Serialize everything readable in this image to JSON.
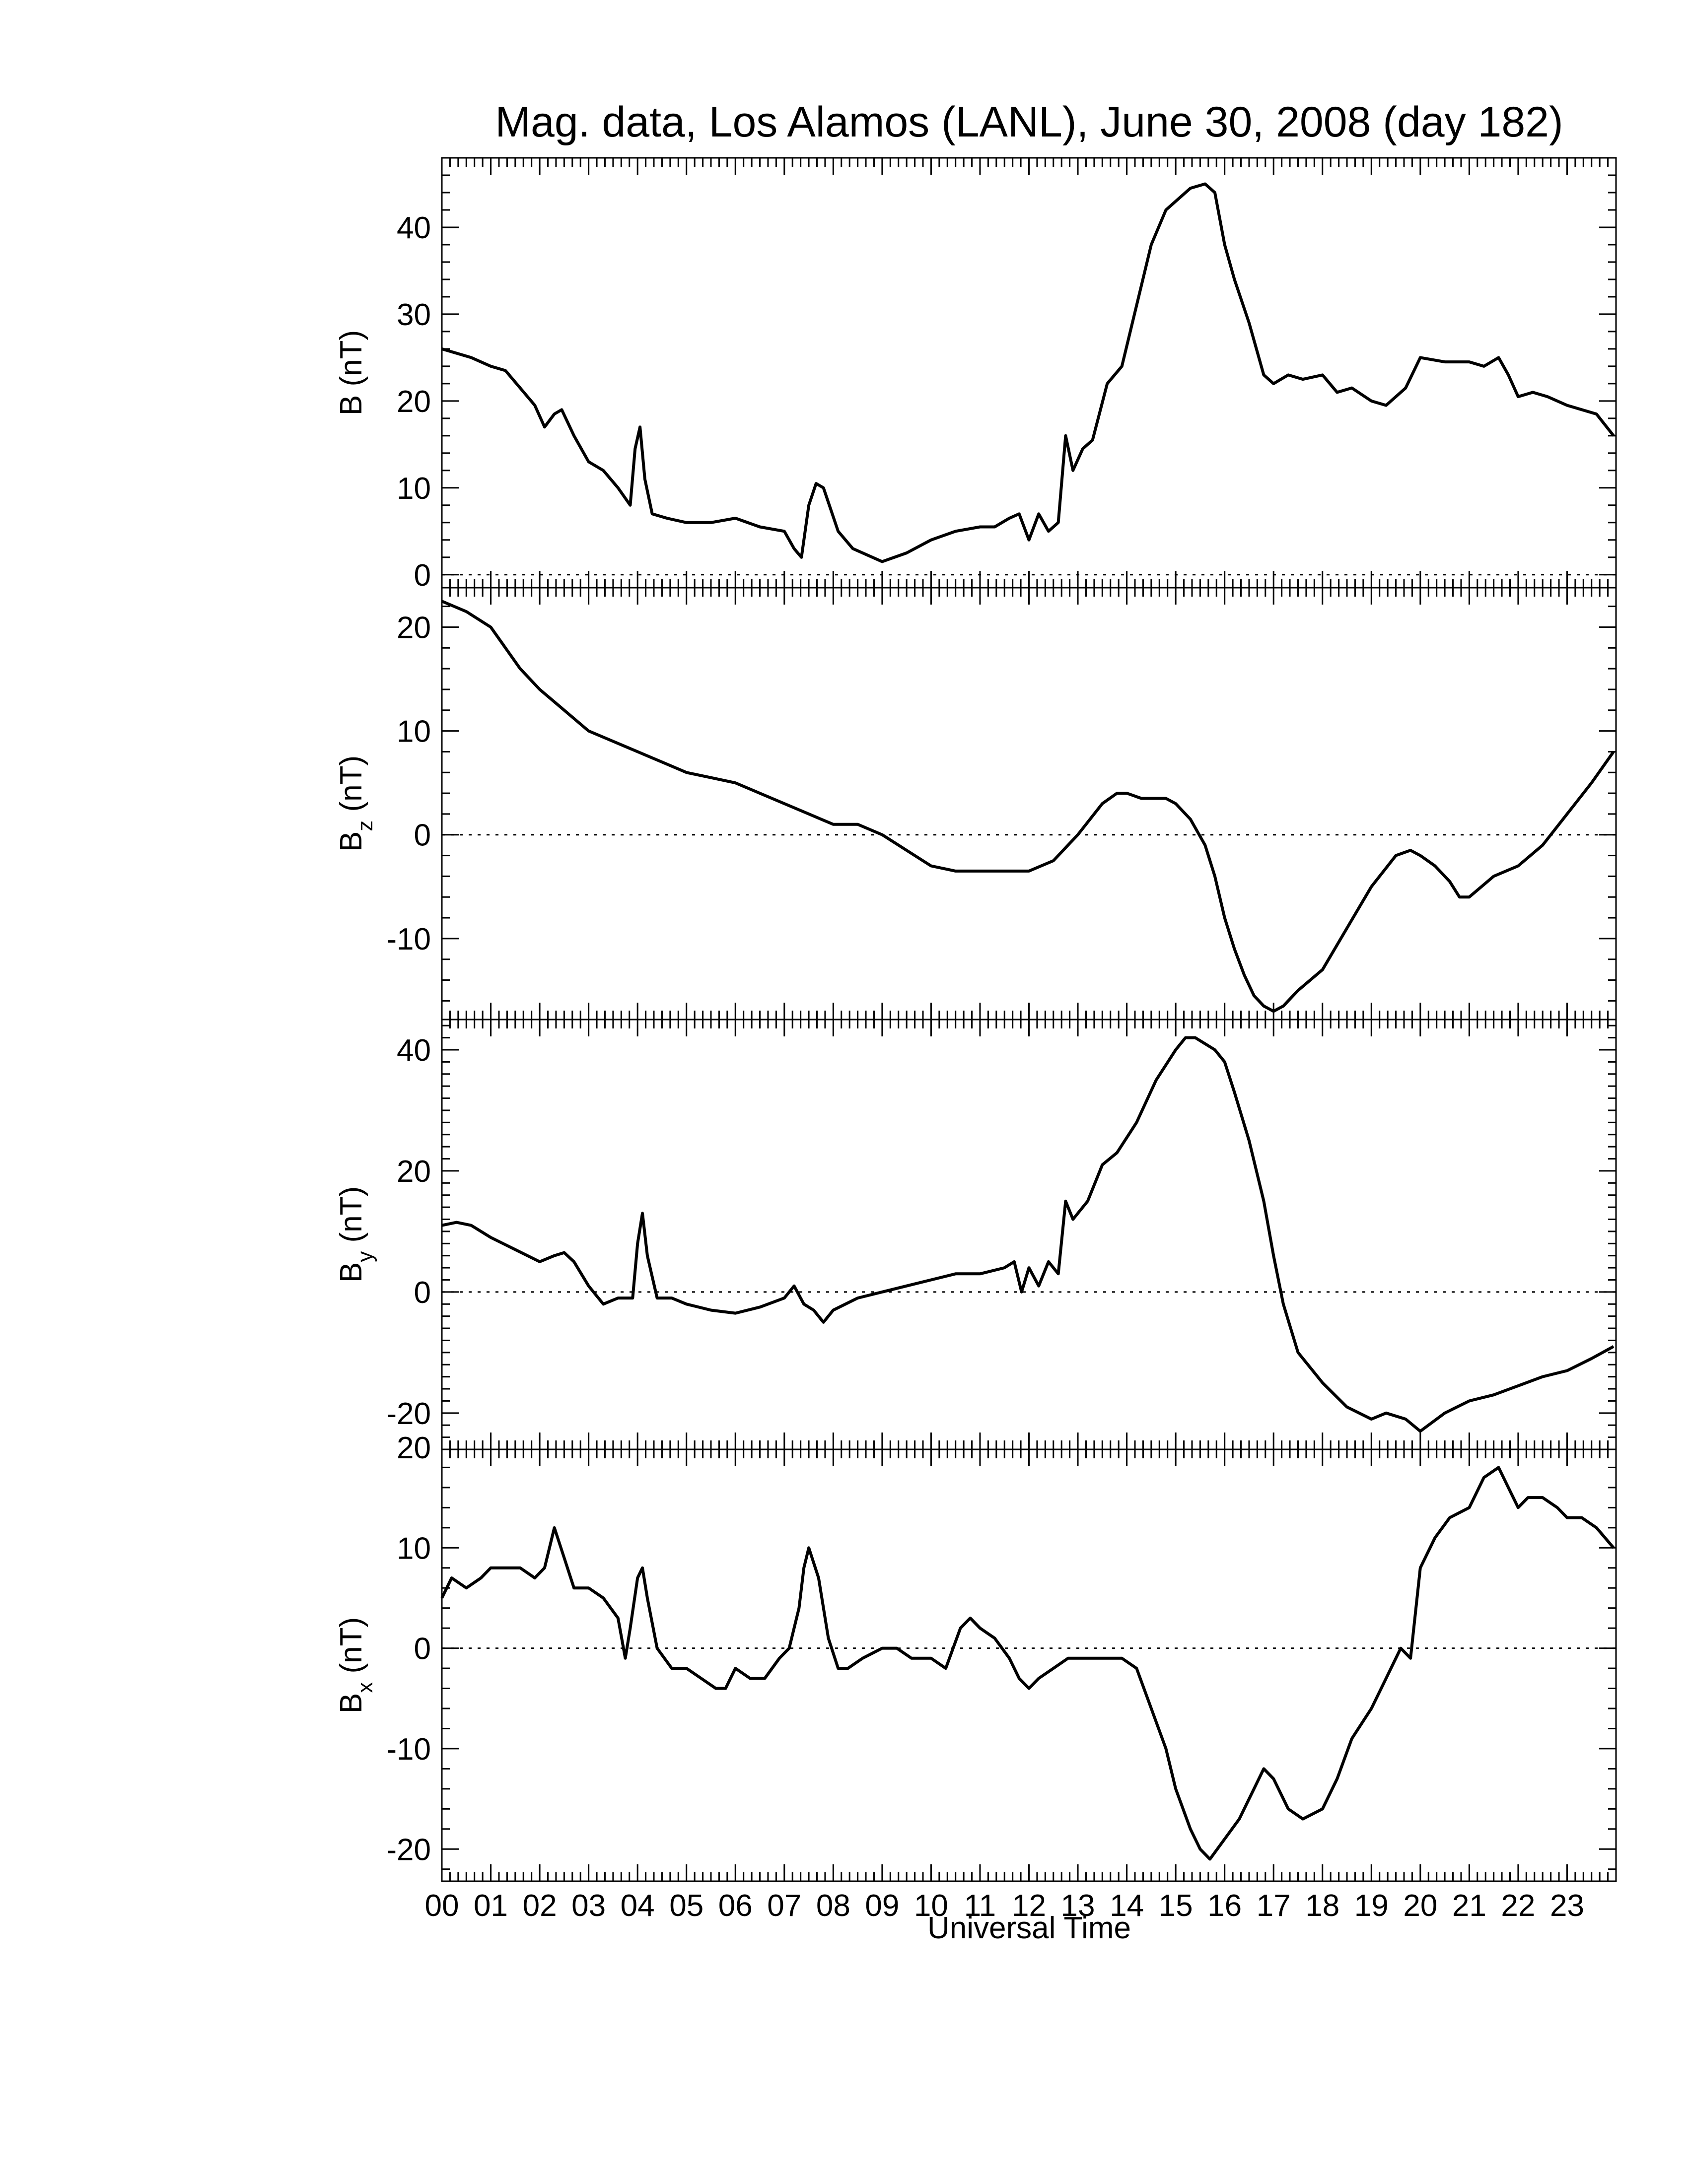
{
  "chart_data": {
    "type": "line",
    "title": "Mag. data, Los Alamos (LANL), June 30, 2008 (day 182)",
    "xlabel": "Universal Time",
    "x_unit": "hours UT",
    "xlim": [
      0,
      24
    ],
    "x_ticks": [
      0,
      1,
      2,
      3,
      4,
      5,
      6,
      7,
      8,
      9,
      10,
      11,
      12,
      13,
      14,
      15,
      16,
      17,
      18,
      19,
      20,
      21,
      22,
      23
    ],
    "x_tick_labels": [
      "00",
      "01",
      "02",
      "03",
      "04",
      "05",
      "06",
      "07",
      "08",
      "09",
      "10",
      "11",
      "12",
      "13",
      "14",
      "15",
      "16",
      "17",
      "18",
      "19",
      "20",
      "21",
      "22",
      "23"
    ],
    "grid": false,
    "reference_line": 0,
    "panels": [
      {
        "ylabel": "B (nT)",
        "ylabel_main": "B",
        "ylabel_sub": "",
        "ylabel_unit": " (nT)",
        "ylim": [
          -1.5,
          48
        ],
        "y_ticks": [
          0,
          10,
          20,
          30,
          40
        ],
        "series": {
          "x": [
            0,
            0.3,
            0.6,
            1.0,
            1.3,
            1.6,
            1.9,
            2.1,
            2.3,
            2.45,
            2.7,
            3.0,
            3.3,
            3.6,
            3.85,
            3.95,
            4.05,
            4.15,
            4.3,
            4.6,
            5.0,
            5.5,
            6.0,
            6.5,
            7.0,
            7.2,
            7.35,
            7.5,
            7.65,
            7.8,
            8.1,
            8.4,
            8.8,
            9.0,
            9.5,
            10.0,
            10.5,
            11.0,
            11.3,
            11.6,
            11.8,
            12.0,
            12.2,
            12.4,
            12.6,
            12.75,
            12.9,
            13.1,
            13.3,
            13.6,
            13.9,
            14.2,
            14.5,
            14.8,
            15.0,
            15.3,
            15.6,
            15.8,
            16.0,
            16.2,
            16.5,
            16.8,
            17.0,
            17.3,
            17.6,
            18.0,
            18.3,
            18.6,
            19.0,
            19.3,
            19.7,
            20.0,
            20.5,
            21.0,
            21.3,
            21.6,
            21.8,
            22.0,
            22.3,
            22.6,
            23.0,
            23.3,
            23.6,
            23.95
          ],
          "y": [
            26,
            25.5,
            25,
            24,
            23.5,
            21.5,
            19.5,
            17,
            18.5,
            19,
            16,
            13,
            12,
            10,
            8,
            14.5,
            17,
            11,
            7,
            6.5,
            6,
            6,
            6.5,
            5.5,
            5,
            3,
            2,
            8,
            10.5,
            10,
            5,
            3,
            2,
            1.5,
            2.5,
            4,
            5,
            5.5,
            5.5,
            6.5,
            7,
            4,
            7,
            5,
            6,
            16,
            12,
            14.5,
            15.5,
            22,
            24,
            31,
            38,
            42,
            43,
            44.5,
            45,
            44,
            38,
            34,
            29,
            23,
            22,
            23,
            22.5,
            23,
            21,
            21.5,
            20,
            19.5,
            21.5,
            25,
            24.5,
            24.5,
            24,
            25,
            23,
            20.5,
            21,
            20.5,
            19.5,
            19,
            18.5,
            16
          ]
        }
      },
      {
        "ylabel": "Bz (nT)",
        "ylabel_main": "B",
        "ylabel_sub": "z",
        "ylabel_unit": " (nT)",
        "ylim": [
          -17.8,
          23.8
        ],
        "y_ticks": [
          -10,
          0,
          10,
          20
        ],
        "series": {
          "x": [
            0,
            0.5,
            1.0,
            1.3,
            1.6,
            2.0,
            2.5,
            3.0,
            3.5,
            4.0,
            4.5,
            5.0,
            5.5,
            6.0,
            6.5,
            7.0,
            7.5,
            8.0,
            8.5,
            9.0,
            9.5,
            10.0,
            10.5,
            11.0,
            11.5,
            12.0,
            12.5,
            13.0,
            13.5,
            13.8,
            14.0,
            14.3,
            14.6,
            14.8,
            15.0,
            15.3,
            15.6,
            15.8,
            16.0,
            16.2,
            16.4,
            16.6,
            16.8,
            17.0,
            17.2,
            17.5,
            18.0,
            18.5,
            19.0,
            19.5,
            19.8,
            20.0,
            20.3,
            20.6,
            20.8,
            21.0,
            21.5,
            22.0,
            22.5,
            23.0,
            23.5,
            23.95
          ],
          "y": [
            22.5,
            21.5,
            20,
            18,
            16,
            14,
            12,
            10,
            9,
            8,
            7,
            6,
            5.5,
            5,
            4,
            3,
            2,
            1,
            1,
            0,
            -1.5,
            -3,
            -3.5,
            -3.5,
            -3.5,
            -3.5,
            -2.5,
            0,
            3,
            4,
            4,
            3.5,
            3.5,
            3.5,
            3,
            1.5,
            -1,
            -4,
            -8,
            -11,
            -13.5,
            -15.5,
            -16.5,
            -17,
            -16.5,
            -15,
            -13,
            -9,
            -5,
            -2,
            -1.5,
            -2,
            -3,
            -4.5,
            -6,
            -6,
            -4,
            -3,
            -1,
            2,
            5,
            8
          ]
        }
      },
      {
        "ylabel": "By (nT)",
        "ylabel_main": "B",
        "ylabel_sub": "y",
        "ylabel_unit": " (nT)",
        "ylim": [
          -26,
          45
        ],
        "y_ticks": [
          -20,
          0,
          20,
          40
        ],
        "series": {
          "x": [
            0,
            0.3,
            0.6,
            1.0,
            1.5,
            2.0,
            2.3,
            2.5,
            2.7,
            3.0,
            3.3,
            3.6,
            3.9,
            4.0,
            4.1,
            4.2,
            4.4,
            4.7,
            5.0,
            5.5,
            6.0,
            6.5,
            7.0,
            7.2,
            7.4,
            7.6,
            7.8,
            8.0,
            8.5,
            9.0,
            9.5,
            10.0,
            10.5,
            11.0,
            11.5,
            11.7,
            11.85,
            12.0,
            12.2,
            12.4,
            12.6,
            12.75,
            12.9,
            13.2,
            13.5,
            13.8,
            14.2,
            14.6,
            15.0,
            15.2,
            15.4,
            15.6,
            15.8,
            16.0,
            16.2,
            16.5,
            16.8,
            17.0,
            17.2,
            17.5,
            18.0,
            18.5,
            19.0,
            19.3,
            19.7,
            20.0,
            20.5,
            21.0,
            21.5,
            22.0,
            22.5,
            23.0,
            23.5,
            23.95
          ],
          "y": [
            11,
            11.5,
            11,
            9,
            7,
            5,
            6,
            6.5,
            5,
            1,
            -2,
            -1,
            -1,
            8,
            13,
            6,
            -1,
            -1,
            -2,
            -3,
            -3.5,
            -2.5,
            -1,
            1,
            -2,
            -3,
            -5,
            -3,
            -1,
            0,
            1,
            2,
            3,
            3,
            4,
            5,
            0,
            4,
            1,
            5,
            3,
            15,
            12,
            15,
            21,
            23,
            28,
            35,
            40,
            42,
            42,
            41,
            40,
            38,
            33,
            25,
            15,
            6,
            -2,
            -10,
            -15,
            -19,
            -21,
            -20,
            -21,
            -23,
            -20,
            -18,
            -17,
            -15.5,
            -14,
            -13,
            -11,
            -9
          ]
        }
      },
      {
        "ylabel": "Bx (nT)",
        "ylabel_main": "B",
        "ylabel_sub": "x",
        "ylabel_unit": " (nT)",
        "ylim": [
          -23.2,
          19.8
        ],
        "y_ticks": [
          -20,
          -10,
          0,
          10,
          20
        ],
        "series": {
          "x": [
            0,
            0.2,
            0.5,
            0.8,
            1.0,
            1.3,
            1.6,
            1.9,
            2.1,
            2.3,
            2.5,
            2.7,
            3.0,
            3.3,
            3.6,
            3.75,
            3.85,
            4.0,
            4.1,
            4.2,
            4.4,
            4.7,
            5.0,
            5.3,
            5.6,
            5.8,
            6.0,
            6.3,
            6.6,
            6.9,
            7.1,
            7.3,
            7.4,
            7.5,
            7.7,
            7.9,
            8.1,
            8.3,
            8.6,
            9.0,
            9.3,
            9.6,
            10.0,
            10.3,
            10.6,
            10.8,
            11.0,
            11.3,
            11.6,
            11.8,
            12.0,
            12.2,
            12.5,
            12.8,
            13.0,
            13.3,
            13.6,
            13.9,
            14.2,
            14.5,
            14.8,
            15.0,
            15.3,
            15.5,
            15.7,
            16.0,
            16.3,
            16.6,
            16.8,
            17.0,
            17.3,
            17.6,
            18.0,
            18.3,
            18.6,
            19.0,
            19.3,
            19.6,
            19.8,
            20.0,
            20.3,
            20.6,
            21.0,
            21.3,
            21.6,
            21.8,
            22.0,
            22.2,
            22.5,
            22.8,
            23.0,
            23.3,
            23.6,
            23.95
          ],
          "y": [
            5,
            7,
            6,
            7,
            8,
            8,
            8,
            7,
            8,
            12,
            9,
            6,
            6,
            5,
            3,
            -1,
            2,
            7,
            8,
            5,
            0,
            -2,
            -2,
            -3,
            -4,
            -4,
            -2,
            -3,
            -3,
            -1,
            0,
            4,
            8,
            10,
            7,
            1,
            -2,
            -2,
            -1,
            0,
            0,
            -1,
            -1,
            -2,
            2,
            3,
            2,
            1,
            -1,
            -3,
            -4,
            -3,
            -2,
            -1,
            -1,
            -1,
            -1,
            -1,
            -2,
            -6,
            -10,
            -14,
            -18,
            -20,
            -21,
            -19,
            -17,
            -14,
            -12,
            -13,
            -16,
            -17,
            -16,
            -13,
            -9,
            -6,
            -3,
            0,
            -1,
            8,
            11,
            13,
            14,
            17,
            18,
            16,
            14,
            15,
            15,
            14,
            13,
            13,
            12,
            10
          ]
        }
      }
    ]
  }
}
